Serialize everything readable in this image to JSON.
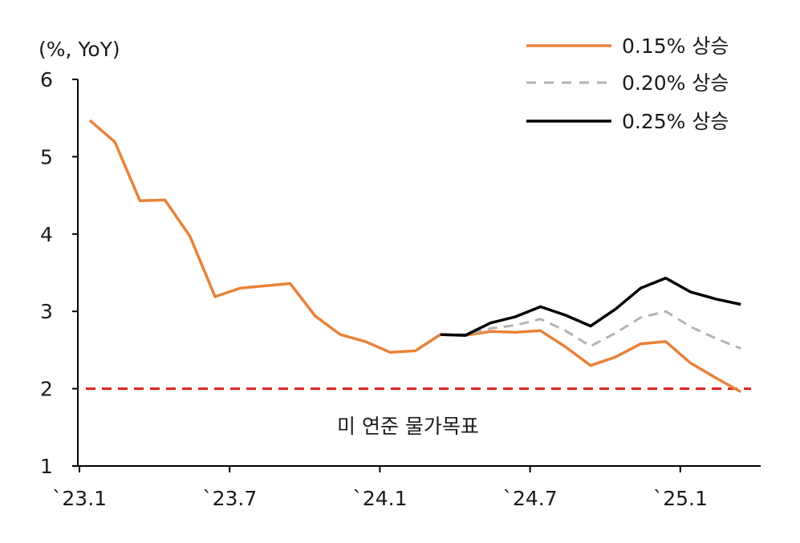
{
  "chart_data": {
    "type": "line",
    "unit_label": "(%, YoY)",
    "ylim": [
      1,
      6
    ],
    "y_ticks": [
      "1",
      "2",
      "3",
      "4",
      "5",
      "6"
    ],
    "x_tick_labels": [
      "`23.1",
      "`23.7",
      "`24.1",
      "`24.7",
      "`25.1"
    ],
    "x_months": [
      "2023-01",
      "2023-02",
      "2023-03",
      "2023-04",
      "2023-05",
      "2023-06",
      "2023-07",
      "2023-08",
      "2023-09",
      "2023-10",
      "2023-11",
      "2023-12",
      "2024-01",
      "2024-02",
      "2024-03",
      "2024-04",
      "2024-05",
      "2024-06",
      "2024-07",
      "2024-08",
      "2024-09",
      "2024-10",
      "2024-11",
      "2024-12",
      "2025-01",
      "2025-02",
      "2025-03",
      "2025-04"
    ],
    "series": [
      {
        "name": "0.15% 상승",
        "color": "#E8823A",
        "style": "solid",
        "values": [
          5.47,
          5.19,
          4.43,
          4.44,
          3.97,
          3.19,
          3.3,
          3.33,
          3.36,
          2.94,
          2.7,
          2.61,
          2.47,
          2.49,
          2.7,
          2.69,
          2.74,
          2.73,
          2.75,
          2.54,
          2.3,
          2.41,
          2.58,
          2.61,
          2.33,
          2.14,
          1.96,
          null
        ]
      },
      {
        "name": "0.20% 상승",
        "color": "#B3B3B3",
        "style": "dashed",
        "values": [
          null,
          null,
          null,
          null,
          null,
          null,
          null,
          null,
          null,
          null,
          null,
          null,
          null,
          null,
          2.7,
          2.7,
          2.78,
          2.82,
          2.9,
          2.75,
          2.55,
          2.72,
          2.92,
          3.0,
          2.8,
          2.65,
          2.52,
          null
        ]
      },
      {
        "name": "0.25% 상승",
        "color": "#000000",
        "style": "solid",
        "values": [
          null,
          null,
          null,
          null,
          null,
          null,
          null,
          null,
          null,
          null,
          null,
          null,
          null,
          null,
          2.7,
          2.69,
          2.85,
          2.93,
          3.06,
          2.95,
          2.81,
          3.03,
          3.3,
          3.43,
          3.25,
          3.16,
          3.09,
          null
        ]
      }
    ],
    "reference_line": {
      "value": 2,
      "label": "미 연준 물가목표",
      "color": "#D9231E",
      "style": "dashed"
    },
    "legend_position": "top-right",
    "grid": false
  }
}
